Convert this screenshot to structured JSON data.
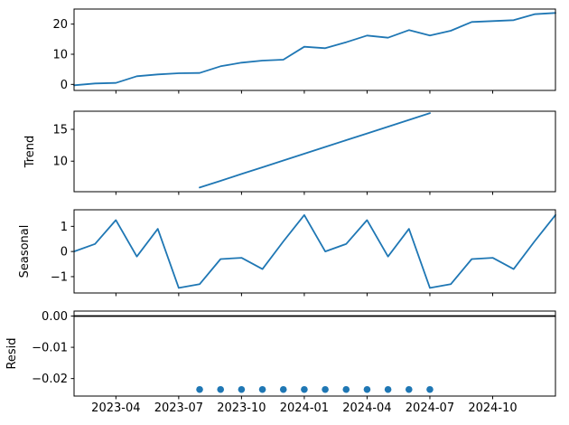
{
  "figure_title": "",
  "chart_data": {
    "type": "line",
    "title": "",
    "subtitle": "",
    "description": "Time-series seasonal decomposition figure with four stacked panels sharing one x axis",
    "grid": false,
    "legend": "none",
    "line_color": "#1f77b4",
    "axis_color": "#000000",
    "x_months": [
      "2023-02",
      "2023-03",
      "2023-04",
      "2023-05",
      "2023-06",
      "2023-07",
      "2023-07",
      "2023-09",
      "2023-10",
      "2023-11",
      "2023-12",
      "2024-01",
      "2024-02",
      "2024-03",
      "2024-04",
      "2024-05",
      "2024-06",
      "2024-07",
      "2024-08",
      "2024-09",
      "2024-10",
      "2024-11",
      "2024-12",
      "2025-01"
    ],
    "x_tick_labels": [
      "2023-04",
      "2023-07",
      "2023-10",
      "2024-01",
      "2024-04",
      "2024-07",
      "2024-10"
    ],
    "x_tick_month_index": [
      2,
      5,
      8,
      11,
      14,
      17,
      20
    ],
    "panels": [
      {
        "id": "observed",
        "ylabel": "",
        "plot": "line",
        "ylim": [
          -2.0,
          25.0
        ],
        "ytick_values": [
          0,
          10,
          20
        ],
        "ytick_labels": [
          "0",
          "10",
          "20"
        ],
        "x_start_index": 0,
        "y": [
          -0.3,
          0.3,
          0.5,
          2.7,
          3.3,
          3.7,
          3.8,
          6.0,
          7.2,
          7.9,
          8.2,
          12.5,
          12.0,
          14.0,
          16.2,
          15.5,
          18.0,
          16.2,
          17.8,
          20.7,
          21.0,
          21.3,
          23.3,
          23.7
        ]
      },
      {
        "id": "trend",
        "ylabel": "Trend",
        "plot": "line",
        "ylim": [
          5.2,
          17.85
        ],
        "ytick_values": [
          10,
          15
        ],
        "ytick_labels": [
          "10",
          "15"
        ],
        "x_start_index": 6,
        "y": [
          5.85,
          6.91,
          7.98,
          9.04,
          10.1,
          11.17,
          12.23,
          13.3,
          14.36,
          15.42,
          16.49,
          17.55
        ]
      },
      {
        "id": "seasonal",
        "ylabel": "Seasonal",
        "plot": "line",
        "ylim": [
          -1.65,
          1.66
        ],
        "ytick_values": [
          -1,
          0,
          1
        ],
        "ytick_labels": [
          "−1",
          "0",
          "1"
        ],
        "x_start_index": 0,
        "y": [
          0.0,
          0.3,
          1.25,
          -0.2,
          0.9,
          -1.45,
          -1.3,
          -0.3,
          -0.25,
          -0.7,
          0.4,
          1.45,
          0.0,
          0.3,
          1.25,
          -0.2,
          0.9,
          -1.45,
          -1.3,
          -0.3,
          -0.25,
          -0.7,
          0.4,
          1.45
        ]
      },
      {
        "id": "resid",
        "ylabel": "Resid",
        "plot": "scatter",
        "zero_line": true,
        "ylim": [
          -0.0256,
          0.0016
        ],
        "ytick_values": [
          0,
          -0.01,
          -0.02
        ],
        "ytick_labels": [
          "0.00",
          "−0.01",
          "−0.02"
        ],
        "x_start_index": 6,
        "y": [
          -0.0235,
          -0.0235,
          -0.0235,
          -0.0235,
          -0.0235,
          -0.0235,
          -0.0235,
          -0.0235,
          -0.0235,
          -0.0235,
          -0.0235,
          -0.0235
        ]
      }
    ]
  }
}
